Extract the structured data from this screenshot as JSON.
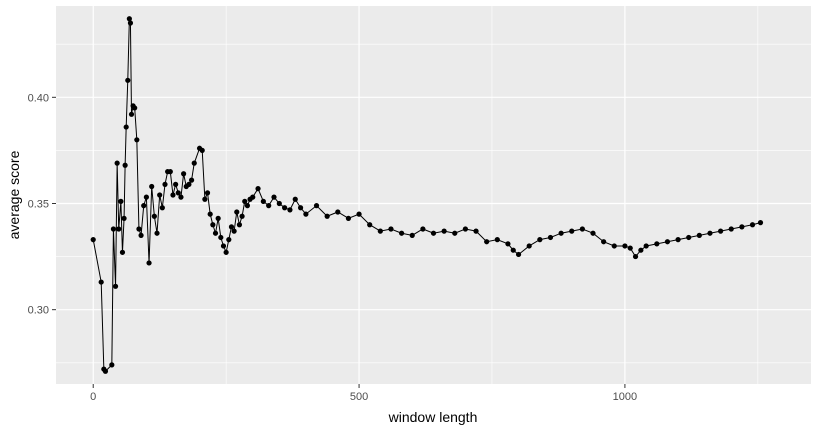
{
  "chart_data": {
    "type": "line",
    "title": "",
    "xlabel": "window length",
    "ylabel": "average score",
    "xlim": [
      -70,
      1350
    ],
    "ylim": [
      0.265,
      0.443
    ],
    "x_ticks": [
      0,
      500,
      1000
    ],
    "x_tick_labels": [
      "0",
      "500",
      "1000"
    ],
    "y_ticks": [
      0.3,
      0.35,
      0.4
    ],
    "y_tick_labels": [
      "0.30",
      "0.35",
      "0.40"
    ],
    "grid": true,
    "legend": "none",
    "series": [
      {
        "color": "#000000",
        "x": [
          0,
          15,
          20,
          23,
          35,
          38,
          42,
          45,
          48,
          52,
          55,
          58,
          60,
          62,
          65,
          68,
          70,
          72,
          75,
          78,
          82,
          86,
          90,
          95,
          100,
          105,
          110,
          115,
          120,
          125,
          130,
          135,
          140,
          145,
          150,
          155,
          160,
          165,
          170,
          175,
          180,
          185,
          190,
          200,
          205,
          210,
          215,
          220,
          225,
          230,
          235,
          240,
          245,
          250,
          255,
          260,
          265,
          270,
          275,
          280,
          285,
          290,
          295,
          300,
          310,
          320,
          330,
          340,
          350,
          360,
          370,
          380,
          390,
          400,
          420,
          440,
          460,
          480,
          500,
          520,
          540,
          560,
          580,
          600,
          620,
          640,
          660,
          680,
          700,
          720,
          740,
          760,
          780,
          790,
          800,
          820,
          840,
          860,
          880,
          900,
          920,
          940,
          960,
          980,
          1000,
          1010,
          1020,
          1030,
          1040,
          1060,
          1080,
          1100,
          1120,
          1140,
          1160,
          1180,
          1200,
          1220,
          1240,
          1255
        ],
        "y": [
          0.333,
          0.313,
          0.272,
          0.271,
          0.274,
          0.338,
          0.311,
          0.369,
          0.338,
          0.351,
          0.327,
          0.343,
          0.368,
          0.386,
          0.408,
          0.437,
          0.435,
          0.392,
          0.396,
          0.395,
          0.38,
          0.338,
          0.335,
          0.349,
          0.353,
          0.322,
          0.358,
          0.344,
          0.336,
          0.354,
          0.348,
          0.359,
          0.365,
          0.365,
          0.354,
          0.359,
          0.355,
          0.353,
          0.364,
          0.358,
          0.359,
          0.361,
          0.369,
          0.376,
          0.375,
          0.352,
          0.355,
          0.345,
          0.34,
          0.336,
          0.343,
          0.334,
          0.33,
          0.327,
          0.333,
          0.339,
          0.337,
          0.346,
          0.34,
          0.344,
          0.351,
          0.349,
          0.352,
          0.353,
          0.357,
          0.351,
          0.349,
          0.353,
          0.35,
          0.348,
          0.347,
          0.352,
          0.348,
          0.345,
          0.349,
          0.344,
          0.346,
          0.343,
          0.345,
          0.34,
          0.337,
          0.338,
          0.336,
          0.335,
          0.338,
          0.336,
          0.337,
          0.336,
          0.338,
          0.337,
          0.332,
          0.333,
          0.331,
          0.328,
          0.326,
          0.33,
          0.333,
          0.334,
          0.336,
          0.337,
          0.338,
          0.336,
          0.332,
          0.33,
          0.33,
          0.329,
          0.325,
          0.328,
          0.33,
          0.331,
          0.332,
          0.333,
          0.334,
          0.335,
          0.336,
          0.337,
          0.338,
          0.339,
          0.34,
          0.341
        ]
      }
    ]
  }
}
